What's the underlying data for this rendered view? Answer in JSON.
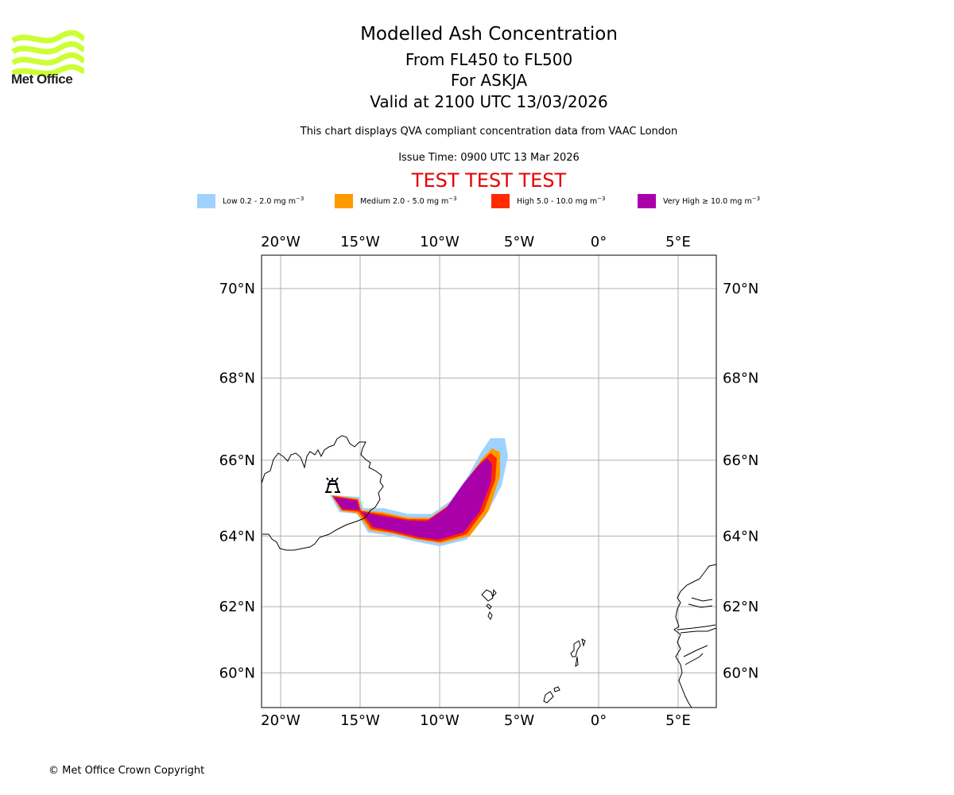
{
  "logo": {
    "text": "Met Office",
    "icon": "met-office-waves-logo",
    "color": "#ccff33"
  },
  "header": {
    "title": "Modelled Ash Concentration",
    "level_range": "From FL450 to FL500",
    "volcano": "For ASKJA",
    "valid_time": "Valid at 2100 UTC 13/03/2026",
    "description": "This chart displays QVA compliant concentration data from VAAC London",
    "issue_time": "Issue Time: 0900 UTC 13 Mar 2026",
    "test_banner": "TEST TEST TEST"
  },
  "legend": [
    {
      "label": "Low 0.2 - 2.0 mg m",
      "unit_exp": "−3",
      "color": "#a0d2ff"
    },
    {
      "label": "Medium 2.0 - 5.0 mg m",
      "unit_exp": "−3",
      "color": "#ff9900"
    },
    {
      "label": "High 5.0 - 10.0 mg m",
      "unit_exp": "−3",
      "color": "#ff2a00"
    },
    {
      "label": "Very High ≥ 10.0 mg m",
      "unit_exp": "−3",
      "color": "#aa00aa"
    }
  ],
  "footer": {
    "copyright": "© Met Office Crown Copyright"
  },
  "chart_data": {
    "type": "map",
    "projection": "mercator",
    "lon_range": [
      -21.2,
      7.4
    ],
    "lat_range": [
      58.9,
      70.7
    ],
    "lon_ticks": [
      -20,
      -15,
      -10,
      -5,
      0,
      5
    ],
    "lon_tick_labels": [
      "20°W",
      "15°W",
      "10°W",
      "5°W",
      "0°",
      "5°E"
    ],
    "lat_ticks": [
      70,
      68,
      66,
      64,
      62,
      60
    ],
    "lat_tick_labels": [
      "70°N",
      "68°N",
      "66°N",
      "64°N",
      "62°N",
      "60°N"
    ],
    "grid": true,
    "volcano": {
      "name": "ASKJA",
      "lon": -16.7,
      "lat": 65.1,
      "icon": "volcano-icon"
    },
    "ash_levels": [
      {
        "name": "Low",
        "color": "#a0d2ff",
        "polygon": [
          [
            -16.9,
            65.1
          ],
          [
            -15.0,
            65.05
          ],
          [
            -14.8,
            64.75
          ],
          [
            -13.5,
            64.75
          ],
          [
            -12.0,
            64.6
          ],
          [
            -10.5,
            64.6
          ],
          [
            -9.3,
            64.95
          ],
          [
            -8.2,
            65.6
          ],
          [
            -7.4,
            66.2
          ],
          [
            -6.8,
            66.55
          ],
          [
            -5.9,
            66.55
          ],
          [
            -5.7,
            66.1
          ],
          [
            -6.1,
            65.35
          ],
          [
            -7.1,
            64.55
          ],
          [
            -8.3,
            63.9
          ],
          [
            -10.0,
            63.72
          ],
          [
            -11.5,
            63.85
          ],
          [
            -13.0,
            64.0
          ],
          [
            -14.5,
            64.1
          ],
          [
            -15.2,
            64.6
          ],
          [
            -16.3,
            64.65
          ],
          [
            -16.9,
            65.1
          ]
        ]
      },
      {
        "name": "Medium",
        "color": "#ff9900",
        "polygon": [
          [
            -16.8,
            65.1
          ],
          [
            -15.1,
            65.0
          ],
          [
            -14.9,
            64.7
          ],
          [
            -13.6,
            64.65
          ],
          [
            -12.0,
            64.5
          ],
          [
            -10.6,
            64.5
          ],
          [
            -9.4,
            64.85
          ],
          [
            -8.3,
            65.5
          ],
          [
            -7.3,
            66.05
          ],
          [
            -6.7,
            66.3
          ],
          [
            -6.2,
            66.2
          ],
          [
            -6.2,
            65.6
          ],
          [
            -6.9,
            64.7
          ],
          [
            -8.1,
            64.0
          ],
          [
            -9.9,
            63.8
          ],
          [
            -11.4,
            63.9
          ],
          [
            -13.0,
            64.07
          ],
          [
            -14.4,
            64.15
          ],
          [
            -15.2,
            64.62
          ],
          [
            -16.2,
            64.68
          ],
          [
            -16.8,
            65.1
          ]
        ]
      },
      {
        "name": "High",
        "color": "#ff2a00",
        "polygon": [
          [
            -16.75,
            65.08
          ],
          [
            -15.15,
            64.98
          ],
          [
            -14.95,
            64.68
          ],
          [
            -13.7,
            64.6
          ],
          [
            -12.0,
            64.46
          ],
          [
            -10.7,
            64.45
          ],
          [
            -9.5,
            64.8
          ],
          [
            -8.4,
            65.45
          ],
          [
            -7.4,
            65.95
          ],
          [
            -6.8,
            66.18
          ],
          [
            -6.4,
            66.05
          ],
          [
            -6.5,
            65.5
          ],
          [
            -7.2,
            64.7
          ],
          [
            -8.3,
            64.05
          ],
          [
            -10.0,
            63.84
          ],
          [
            -11.4,
            63.93
          ],
          [
            -13.0,
            64.1
          ],
          [
            -14.3,
            64.2
          ],
          [
            -15.1,
            64.66
          ],
          [
            -16.15,
            64.7
          ],
          [
            -16.75,
            65.08
          ]
        ]
      },
      {
        "name": "Very High",
        "color": "#aa00aa",
        "polygon": [
          [
            -16.7,
            65.05
          ],
          [
            -15.2,
            64.95
          ],
          [
            -15.0,
            64.66
          ],
          [
            -13.8,
            64.55
          ],
          [
            -12.0,
            64.42
          ],
          [
            -10.8,
            64.4
          ],
          [
            -9.6,
            64.75
          ],
          [
            -8.5,
            65.4
          ],
          [
            -7.6,
            65.85
          ],
          [
            -7.0,
            66.05
          ],
          [
            -6.7,
            65.9
          ],
          [
            -6.8,
            65.4
          ],
          [
            -7.5,
            64.65
          ],
          [
            -8.5,
            64.1
          ],
          [
            -10.1,
            63.9
          ],
          [
            -11.4,
            63.98
          ],
          [
            -13.0,
            64.15
          ],
          [
            -14.2,
            64.25
          ],
          [
            -15.0,
            64.7
          ],
          [
            -16.1,
            64.73
          ],
          [
            -16.7,
            65.05
          ]
        ]
      }
    ]
  }
}
